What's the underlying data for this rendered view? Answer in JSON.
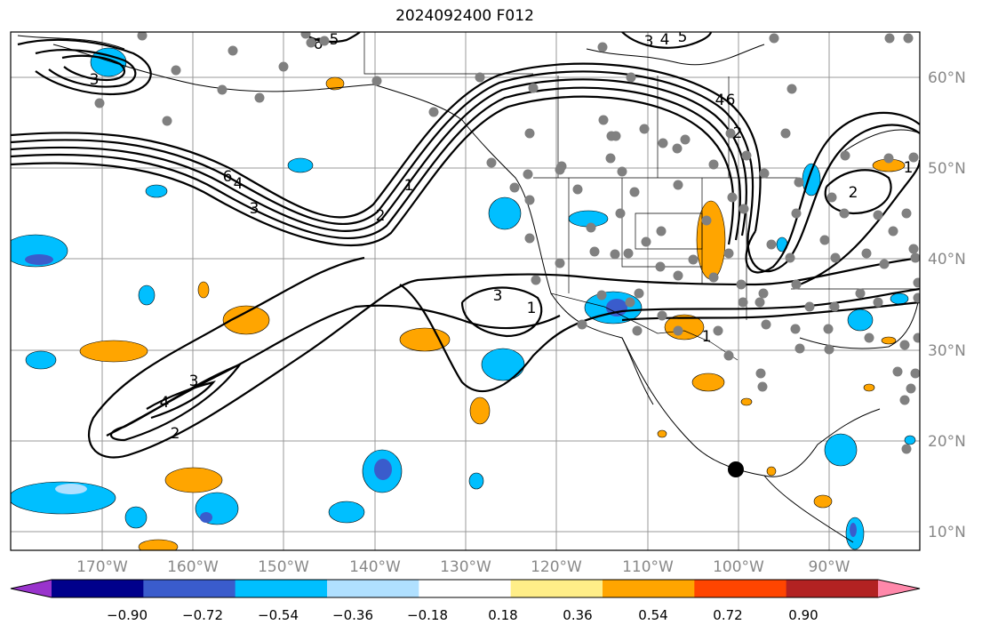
{
  "title": "2024092400 F012",
  "map": {
    "lon_range": [
      -180,
      -80
    ],
    "lat_range": [
      8,
      65
    ],
    "lat_labels": [
      "60°N",
      "50°N",
      "40°N",
      "30°N",
      "20°N",
      "10°N"
    ],
    "lon_labels": [
      "170°W",
      "160°W",
      "150°W",
      "140°W",
      "130°W",
      "120°W",
      "110°W",
      "100°W",
      "90°W"
    ],
    "gridline_color": "#999999",
    "contour_labels": [
      "6",
      "5",
      "3",
      "4",
      "2",
      "1",
      "3",
      "6",
      "4",
      "3",
      "2",
      "1",
      "3",
      "2",
      "1",
      "6",
      "4",
      "5",
      "4",
      "3",
      "2",
      "1"
    ],
    "station_color": "#808080",
    "marker_color": "#000000"
  },
  "colorbar": {
    "ticks": [
      "−0.90",
      "−0.72",
      "−0.54",
      "−0.36",
      "−0.18",
      "0.18",
      "0.36",
      "0.54",
      "0.72",
      "0.90"
    ],
    "colors": [
      "#9933cc",
      "#00008b",
      "#3a5ccc",
      "#00bfff",
      "#b0e0ff",
      "#ffffff",
      "#ffee88",
      "#ffa500",
      "#ff4500",
      "#b22222",
      "#ff88aa"
    ]
  }
}
